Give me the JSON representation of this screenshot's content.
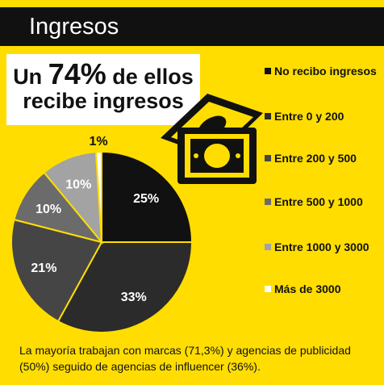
{
  "header": {
    "title": "Ingresos"
  },
  "callout": {
    "line1_pre": "Un ",
    "line1_big": "74%",
    "line1_post": " de ellos",
    "line2": "recibe ingresos"
  },
  "chart_data": {
    "type": "pie",
    "categories": [
      "No recibo ingresos",
      "Entre 0 y  200",
      "Entre 200 y 500",
      "Entre 500 y 1000",
      "Entre 1000 y 3000",
      "Más de 3000"
    ],
    "values": [
      25,
      33,
      21,
      10,
      10,
      1
    ],
    "labels": [
      "25%",
      "33%",
      "21%",
      "10%",
      "10%",
      "1%"
    ],
    "colors": [
      "#111111",
      "#2b2b2b",
      "#454545",
      "#6b6b6b",
      "#a3a3a3",
      "#ffffff"
    ],
    "label_colors": [
      "#ffffff",
      "#ffffff",
      "#ffffff",
      "#ffffff",
      "#ffffff",
      "#111111"
    ],
    "legend_position": "right"
  },
  "footer": {
    "text": "La mayoría trabajan con marcas (71,3%) y agencias de publicidad (50%) seguido de agencias de influencer (36%)."
  },
  "icons": {
    "illustration": "money-bills-icon"
  }
}
